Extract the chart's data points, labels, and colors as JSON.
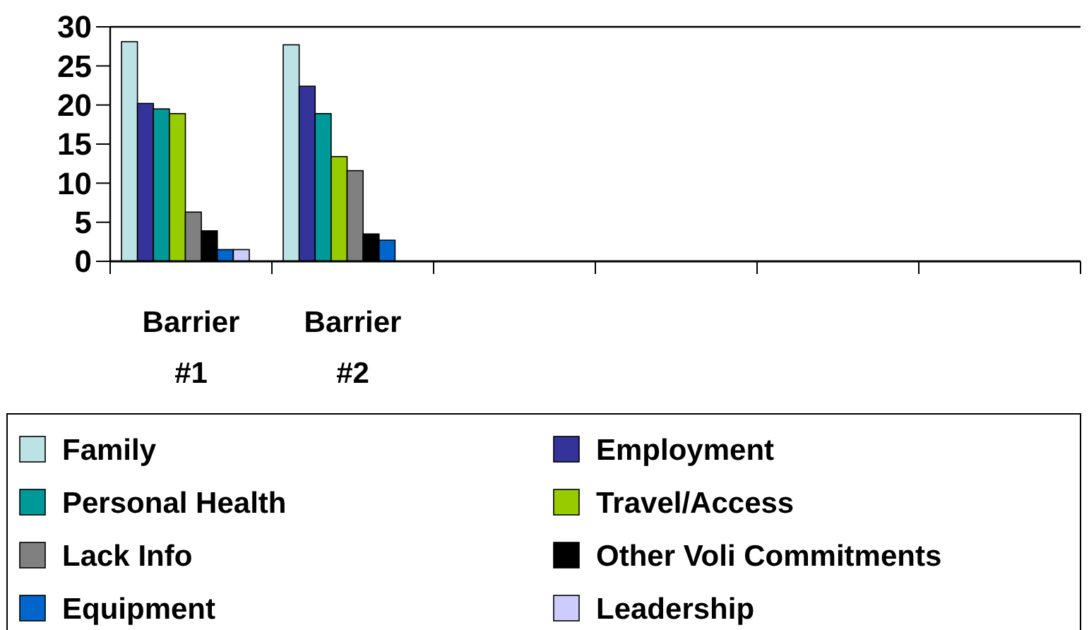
{
  "chart_data": {
    "type": "bar",
    "categories": [
      "Barrier #1",
      "Barrier #2",
      null,
      null,
      null,
      null
    ],
    "series": [
      {
        "name": "Family",
        "color": "#bde2e6",
        "values": [
          28.1,
          27.7,
          null,
          null,
          null,
          null
        ]
      },
      {
        "name": "Employment",
        "color": "#333399",
        "values": [
          20.2,
          22.4,
          null,
          null,
          null,
          null
        ]
      },
      {
        "name": "Personal Health",
        "color": "#009999",
        "values": [
          19.5,
          18.9,
          null,
          null,
          null,
          null
        ]
      },
      {
        "name": "Travel/Access",
        "color": "#99cc00",
        "values": [
          18.9,
          13.4,
          null,
          null,
          null,
          null
        ]
      },
      {
        "name": "Lack Info",
        "color": "#808080",
        "values": [
          6.3,
          11.6,
          null,
          null,
          null,
          null
        ]
      },
      {
        "name": "Other Voli Commitments",
        "color": "#000000",
        "values": [
          3.9,
          3.5,
          null,
          null,
          null,
          null
        ]
      },
      {
        "name": "Equipment",
        "color": "#0066cc",
        "values": [
          1.5,
          2.7,
          null,
          null,
          null,
          null
        ]
      },
      {
        "name": "Leadership",
        "color": "#ccccff",
        "values": [
          1.5,
          null,
          null,
          null,
          null,
          null
        ]
      }
    ],
    "ylim": [
      0,
      30
    ],
    "yticks": [
      0,
      5,
      10,
      15,
      20,
      25,
      30
    ],
    "grid": false,
    "legend": "bottom"
  }
}
